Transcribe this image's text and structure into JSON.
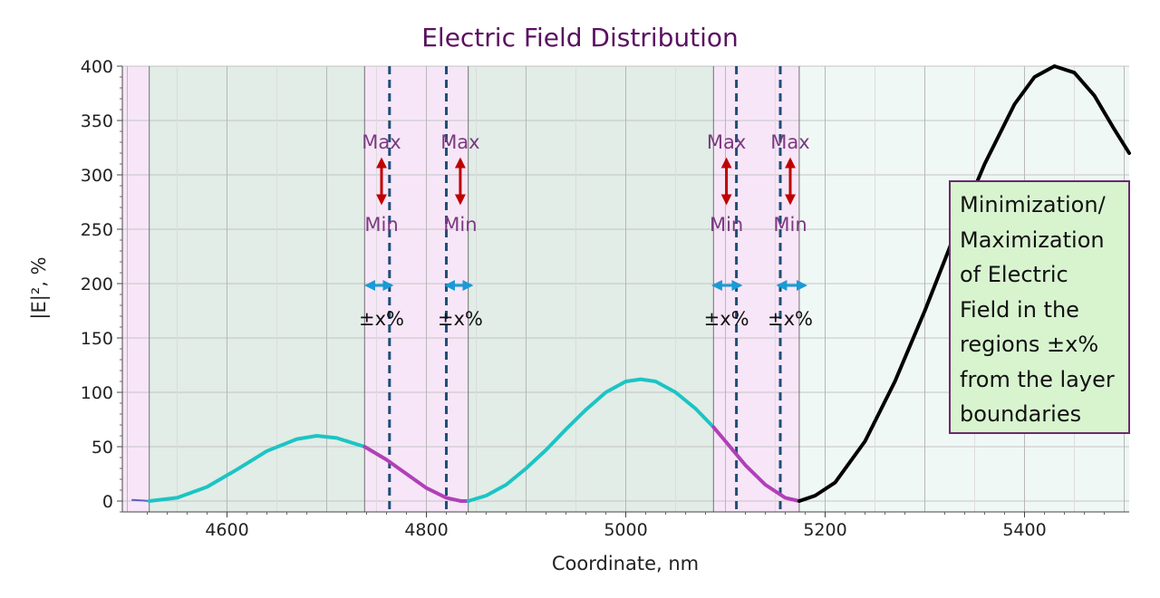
{
  "chart_data": {
    "type": "line",
    "title": "Electric Field Distribution",
    "xlabel": "Coordinate, nm",
    "ylabel": "|E|², %",
    "xlim": [
      4495,
      5505
    ],
    "ylim": [
      -10,
      400
    ],
    "x_ticks": [
      4600,
      4800,
      5000,
      5200,
      5400
    ],
    "y_ticks": [
      0,
      50,
      100,
      150,
      200,
      250,
      300,
      350,
      400
    ],
    "grid": true,
    "layers": [
      {
        "x0": 4495,
        "x1": 4522,
        "color": "#f7e6f7"
      },
      {
        "x0": 4522,
        "x1": 4738,
        "color": "#e1ede6"
      },
      {
        "x0": 4738,
        "x1": 4842,
        "color": "#f7e6f7"
      },
      {
        "x0": 4842,
        "x1": 5088,
        "color": "#e1ede6"
      },
      {
        "x0": 5088,
        "x1": 5174,
        "color": "#f7e6f7"
      },
      {
        "x0": 5174,
        "x1": 5505,
        "color": "#f0f8f5"
      }
    ],
    "solid_boundaries": [
      4522,
      4738,
      4842,
      5088,
      5174
    ],
    "dashed_boundaries": [
      4763,
      4820,
      5111,
      5155
    ],
    "series": [
      {
        "color": "#6060c0",
        "x": [
          4505,
          4515,
          4522
        ],
        "y": [
          1,
          0.5,
          0
        ]
      },
      {
        "color": "#1cc4c4",
        "x": [
          4522,
          4550,
          4580,
          4610,
          4640,
          4670,
          4690,
          4710,
          4738
        ],
        "y": [
          0,
          3,
          13,
          29,
          46,
          57,
          60,
          58,
          50
        ]
      },
      {
        "color": "#b040b8",
        "x": [
          4738,
          4760,
          4780,
          4800,
          4820,
          4835,
          4842
        ],
        "y": [
          50,
          38,
          25,
          12,
          3,
          0,
          0
        ]
      },
      {
        "color": "#1cc4c4",
        "x": [
          4842,
          4860,
          4880,
          4900,
          4920,
          4940,
          4960,
          4980,
          5000,
          5015,
          5030,
          5050,
          5070,
          5088
        ],
        "y": [
          0,
          5,
          15,
          30,
          47,
          66,
          84,
          100,
          110,
          112,
          110,
          100,
          85,
          68
        ]
      },
      {
        "color": "#b040b8",
        "x": [
          5088,
          5100,
          5120,
          5140,
          5160,
          5174
        ],
        "y": [
          68,
          55,
          33,
          15,
          3,
          0
        ]
      },
      {
        "color": "#000000",
        "x": [
          5174,
          5190,
          5210,
          5240,
          5270,
          5300,
          5330,
          5360,
          5390,
          5410,
          5430,
          5450,
          5470,
          5490,
          5505
        ],
        "y": [
          0,
          5,
          17,
          55,
          110,
          175,
          245,
          310,
          365,
          390,
          400,
          394,
          373,
          342,
          320
        ]
      }
    ],
    "annotations": {
      "max_label": "Max",
      "min_label": "Min",
      "pct_label": "±x%",
      "groups": [
        {
          "x": 4755,
          "range": [
            4740,
            4765
          ]
        },
        {
          "x": 4834,
          "range": [
            4820,
            4845
          ]
        },
        {
          "x": 5101,
          "range": [
            5088,
            5115
          ]
        },
        {
          "x": 5165,
          "range": [
            5153,
            5180
          ]
        }
      ]
    },
    "note": {
      "lines": [
        "Minimization/",
        "Maximization",
        "of Electric",
        "Field in the",
        "regions ±x%",
        "from the layer",
        "boundaries"
      ]
    }
  }
}
